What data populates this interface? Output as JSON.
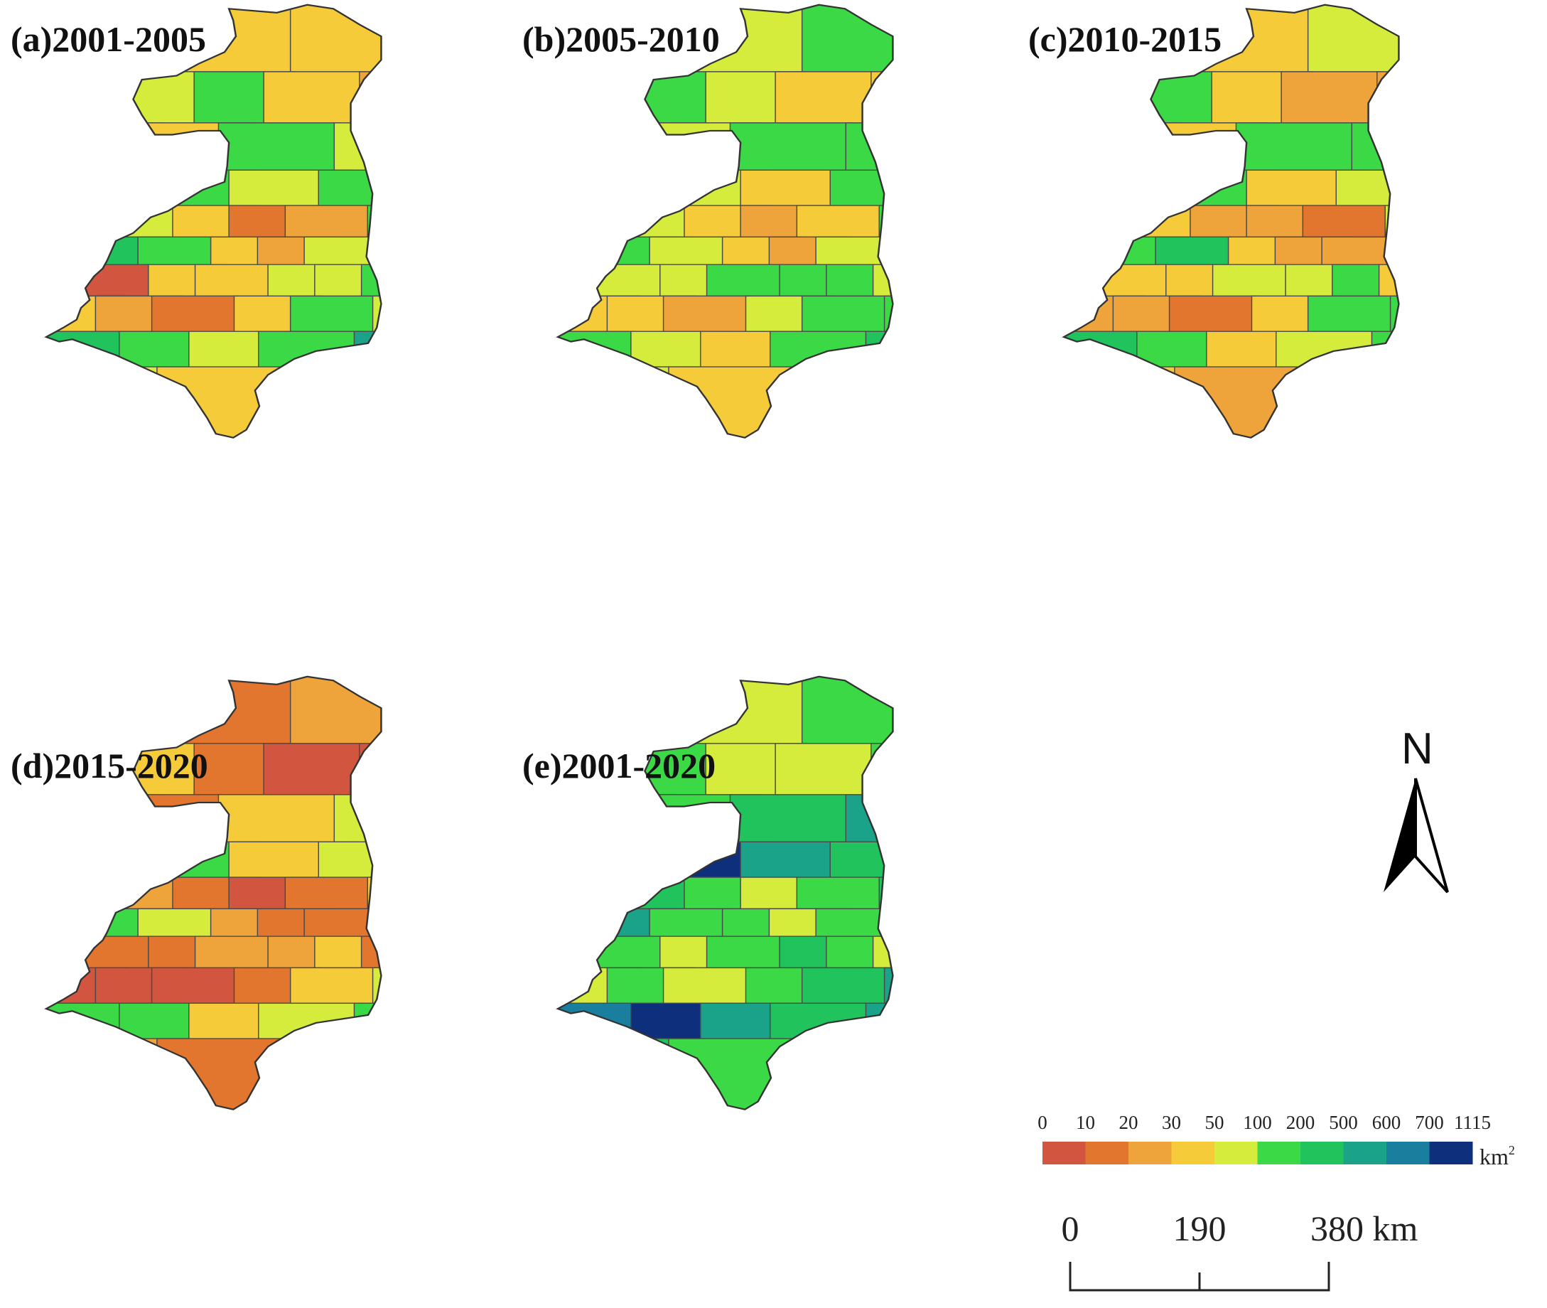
{
  "panels": [
    {
      "id": "a",
      "label": "(a)2001-2005",
      "pattern": [
        1,
        4,
        4,
        5,
        5,
        6,
        4,
        3,
        2,
        4,
        6,
        5,
        7,
        6,
        5,
        6,
        8,
        5,
        4,
        2,
        3,
        6,
        5,
        7,
        6,
        4,
        3,
        5,
        6,
        5
      ]
    },
    {
      "id": "b",
      "label": "(b)2005-2010",
      "pattern": [
        5,
        5,
        6,
        6,
        6,
        5,
        4,
        4,
        3,
        5,
        6,
        6,
        6,
        5,
        4,
        6,
        7,
        5,
        4,
        3,
        4,
        6,
        6,
        6,
        5,
        4,
        3,
        5,
        6,
        6
      ]
    },
    {
      "id": "c",
      "label": "(c)2010-2015",
      "pattern": [
        4,
        4,
        5,
        5,
        6,
        4,
        3,
        3,
        2,
        4,
        6,
        6,
        7,
        6,
        4,
        5,
        6,
        4,
        3,
        3,
        2,
        5,
        5,
        6,
        7,
        4,
        3,
        3,
        5,
        6
      ]
    },
    {
      "id": "d",
      "label": "(d)2015-2020",
      "pattern": [
        2,
        2,
        3,
        3,
        4,
        2,
        1,
        1,
        1,
        2,
        4,
        5,
        6,
        6,
        4,
        5,
        6,
        3,
        2,
        1,
        2,
        4,
        5,
        6,
        5,
        3,
        2,
        2,
        4,
        5
      ]
    },
    {
      "id": "e",
      "label": "(e)2001-2020",
      "pattern": [
        6,
        5,
        6,
        7,
        6,
        5,
        5,
        6,
        5,
        6,
        7,
        8,
        9,
        10,
        8,
        7,
        8,
        7,
        6,
        5,
        6,
        7,
        7,
        8,
        6,
        6,
        5,
        6,
        7,
        6
      ]
    }
  ],
  "legend": {
    "tick_labels": [
      "0",
      "10",
      "20",
      "30",
      "50",
      "100",
      "200",
      "500",
      "600",
      "700",
      "1115"
    ],
    "unit": "km",
    "unit_sup": "2",
    "colors": [
      "#d2553f",
      "#e2762f",
      "#eea43a",
      "#f5cb3a",
      "#d6ec3c",
      "#3bd945",
      "#20c35c",
      "#1ba38a",
      "#1a7f9f",
      "#0d2f7c"
    ]
  },
  "scale_bar": {
    "labels": [
      "0",
      "190",
      "380 km"
    ]
  },
  "north_arrow": {
    "label": "N"
  },
  "icons": {
    "north": "north-arrow-icon"
  }
}
